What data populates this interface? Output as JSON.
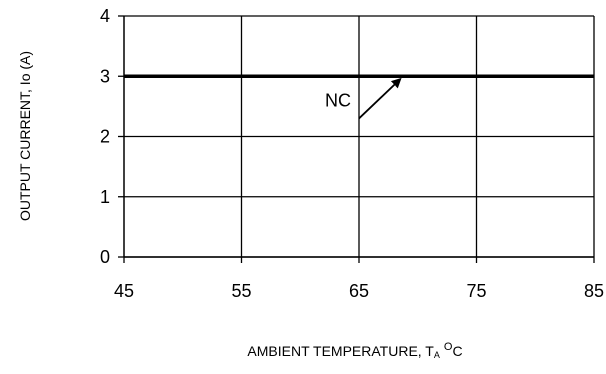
{
  "chart_data": {
    "type": "line",
    "title": "",
    "xlabel": {
      "main": "AMBIENT TEMPERATURE, T",
      "subscript": "A",
      "superscript": "O",
      "unit": "C"
    },
    "ylabel": "OUTPUT CURRENT, Io  (A)",
    "xlim": [
      45,
      85
    ],
    "ylim": [
      0,
      4
    ],
    "x_ticks": [
      "45",
      "55",
      "65",
      "75",
      "85"
    ],
    "y_ticks": [
      "0",
      "1",
      "2",
      "3",
      "4"
    ],
    "grid": true,
    "series": [
      {
        "x": [
          45,
          85
        ],
        "y": [
          3,
          3
        ],
        "color": "#000000"
      }
    ],
    "annotations": [
      {
        "text": "NC",
        "arrow_from": [
          65,
          2.3
        ],
        "arrow_to": [
          68.5,
          2.95
        ]
      }
    ]
  }
}
